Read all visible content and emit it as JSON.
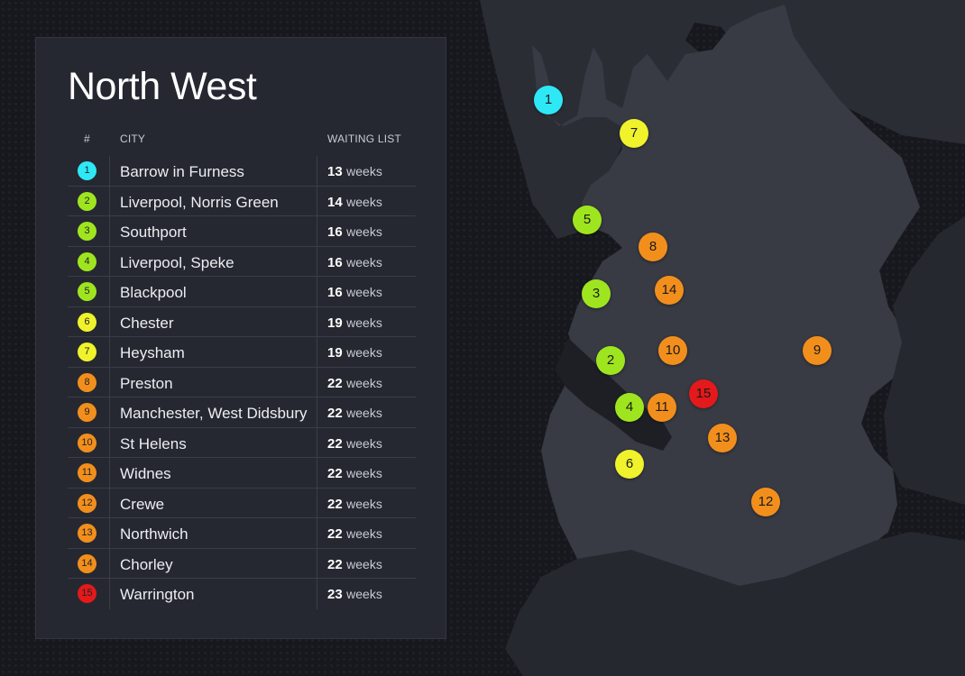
{
  "title": "North West",
  "headers": {
    "num": "#",
    "city": "City",
    "waiting": "Waiting list"
  },
  "colors": {
    "cyan": "#2ee8f5",
    "lime": "#9fe51f",
    "yellow": "#f0f22c",
    "orange": "#f28f1c",
    "red": "#e3191b"
  },
  "rows": [
    {
      "num": "1",
      "city": "Barrow in Furness",
      "weeks": "13",
      "unit": "weeks",
      "color": "#2ee8f5"
    },
    {
      "num": "2",
      "city": "Liverpool, Norris Green",
      "weeks": "14",
      "unit": "weeks",
      "color": "#9fe51f"
    },
    {
      "num": "3",
      "city": "Southport",
      "weeks": "16",
      "unit": "weeks",
      "color": "#9fe51f"
    },
    {
      "num": "4",
      "city": "Liverpool, Speke",
      "weeks": "16",
      "unit": "weeks",
      "color": "#9fe51f"
    },
    {
      "num": "5",
      "city": "Blackpool",
      "weeks": "16",
      "unit": "weeks",
      "color": "#9fe51f"
    },
    {
      "num": "6",
      "city": "Chester",
      "weeks": "19",
      "unit": "weeks",
      "color": "#f0f22c"
    },
    {
      "num": "7",
      "city": "Heysham",
      "weeks": "19",
      "unit": "weeks",
      "color": "#f0f22c"
    },
    {
      "num": "8",
      "city": "Preston",
      "weeks": "22",
      "unit": "weeks",
      "color": "#f28f1c"
    },
    {
      "num": "9",
      "city": "Manchester, West Didsbury",
      "weeks": "22",
      "unit": "weeks",
      "color": "#f28f1c"
    },
    {
      "num": "10",
      "city": "St Helens",
      "weeks": "22",
      "unit": "weeks",
      "color": "#f28f1c"
    },
    {
      "num": "11",
      "city": "Widnes",
      "weeks": "22",
      "unit": "weeks",
      "color": "#f28f1c"
    },
    {
      "num": "12",
      "city": "Crewe",
      "weeks": "22",
      "unit": "weeks",
      "color": "#f28f1c"
    },
    {
      "num": "13",
      "city": "Northwich",
      "weeks": "22",
      "unit": "weeks",
      "color": "#f28f1c"
    },
    {
      "num": "14",
      "city": "Chorley",
      "weeks": "22",
      "unit": "weeks",
      "color": "#f28f1c"
    },
    {
      "num": "15",
      "city": "Warrington",
      "weeks": "23",
      "unit": "weeks",
      "color": "#e3191b"
    }
  ]
}
